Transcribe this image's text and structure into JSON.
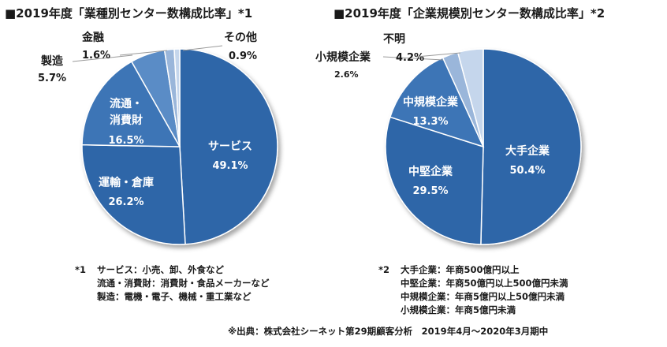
{
  "chart_data": [
    {
      "type": "pie",
      "title": "■2019年度「業種別センター数構成比率」*1",
      "unit": "%",
      "slices": [
        {
          "label": "サービス",
          "value": 49.1,
          "display": "49.1%",
          "color": "#2f66a8"
        },
        {
          "label": "運輸・倉庫",
          "value": 26.2,
          "display": "26.2%",
          "color": "#2f66a8"
        },
        {
          "label": "流通・消費財",
          "label_lines": [
            "流通・",
            "消費財"
          ],
          "value": 16.5,
          "display": "16.5%",
          "color": "#3c74b6"
        },
        {
          "label": "製造",
          "value": 5.7,
          "display": "5.7%",
          "color": "#5a8cc6"
        },
        {
          "label": "金融",
          "value": 1.6,
          "display": "1.6%",
          "color": "#9ab6da"
        },
        {
          "label": "その他",
          "value": 0.9,
          "display": "0.9%",
          "color": "#c5d6ec"
        }
      ]
    },
    {
      "type": "pie",
      "title": "■2019年度「企業規模別センター数構成比率」*2",
      "unit": "%",
      "slices": [
        {
          "label": "大手企業",
          "value": 50.4,
          "display": "50.4%",
          "color": "#2f66a8"
        },
        {
          "label": "中堅企業",
          "value": 29.5,
          "display": "29.5%",
          "color": "#2f66a8"
        },
        {
          "label": "中規模企業",
          "value": 13.3,
          "display": "13.3%",
          "color": "#3c74b6"
        },
        {
          "label": "小規模企業",
          "value": 2.6,
          "display": "2.6%",
          "color": "#9ab6da"
        },
        {
          "label": "不明",
          "value": 4.2,
          "display": "4.2%",
          "color": "#c5d6ec"
        }
      ]
    }
  ],
  "notes": {
    "left": {
      "mark": "*1",
      "lines": [
        "サービス：小売、卸、外食など",
        "流通・消費財：消費財・食品メーカーなど",
        "製造：電機・電子、機械・重工業など"
      ]
    },
    "right": {
      "mark": "*2",
      "lines": [
        "大手企業：年商500億円以上",
        "中堅企業：年商50億円以上500億円未満",
        "中規模企業：年商5億円以上50億円未満",
        "小規模企業：年商5億円未満"
      ]
    }
  },
  "source": "※出典：株式会社シーネット第29期顧客分析　2019年4月～2020年3月期中"
}
